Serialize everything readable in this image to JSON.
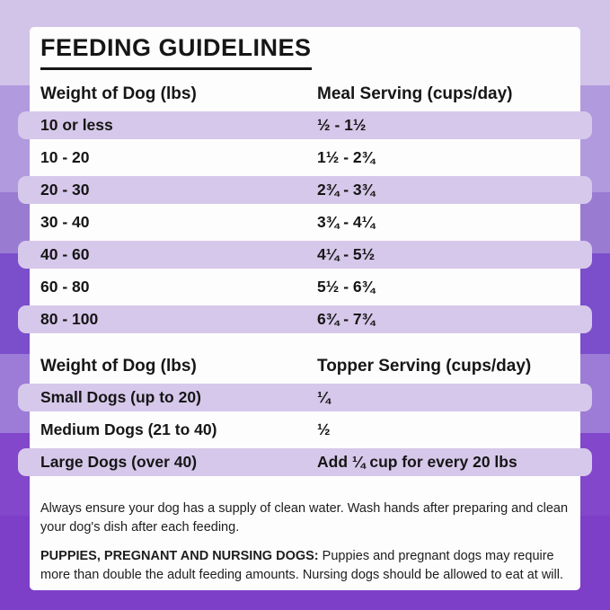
{
  "page": {
    "title": "FEEDING GUIDELINES"
  },
  "meal_table": {
    "headers": [
      "Weight of Dog (lbs)",
      "Meal Serving (cups/day)"
    ],
    "rows": [
      {
        "weight": "10 or less",
        "serving": "½ - 1½"
      },
      {
        "weight": "10 - 20",
        "serving": "1½ - 2¾"
      },
      {
        "weight": "20 - 30",
        "serving": "2¾ - 3¾"
      },
      {
        "weight": "30 - 40",
        "serving": "3¾ - 4¼"
      },
      {
        "weight": "40 - 60",
        "serving": "4¼ - 5½"
      },
      {
        "weight": "60 - 80",
        "serving": "5½ - 6¾"
      },
      {
        "weight": "80 - 100",
        "serving": "6¾ - 7¾"
      }
    ]
  },
  "topper_table": {
    "headers": [
      "Weight of Dog (lbs)",
      "Topper Serving (cups/day)"
    ],
    "rows": [
      {
        "weight": "Small Dogs (up to 20)",
        "serving": "¼"
      },
      {
        "weight": "Medium Dogs (21 to 40)",
        "serving": "½"
      },
      {
        "weight": "Large Dogs (over 40)",
        "serving": "Add ¼ cup for every 20 lbs"
      }
    ]
  },
  "notes": {
    "water": "Always ensure your dog has a supply of clean water. Wash hands after preparing and clean your dog's dish after each feeding.",
    "puppies_label": "PUPPIES, PREGNANT AND NURSING DOGS:",
    "puppies_text": " Puppies and pregnant dogs may require more than double the adult feeding amounts. Nursing dogs should be allowed to eat at will."
  },
  "colors": {
    "band1": "#d2c3e8",
    "band2": "#b19ade",
    "band3": "#9a7bd2",
    "band4": "#7b4ecb",
    "band5": "#9c7cd6",
    "band6": "#8347cb",
    "band7": "#7d3ec8",
    "stripe": "#d6c8ea",
    "card": "#fefdfe",
    "ink": "#161616"
  }
}
